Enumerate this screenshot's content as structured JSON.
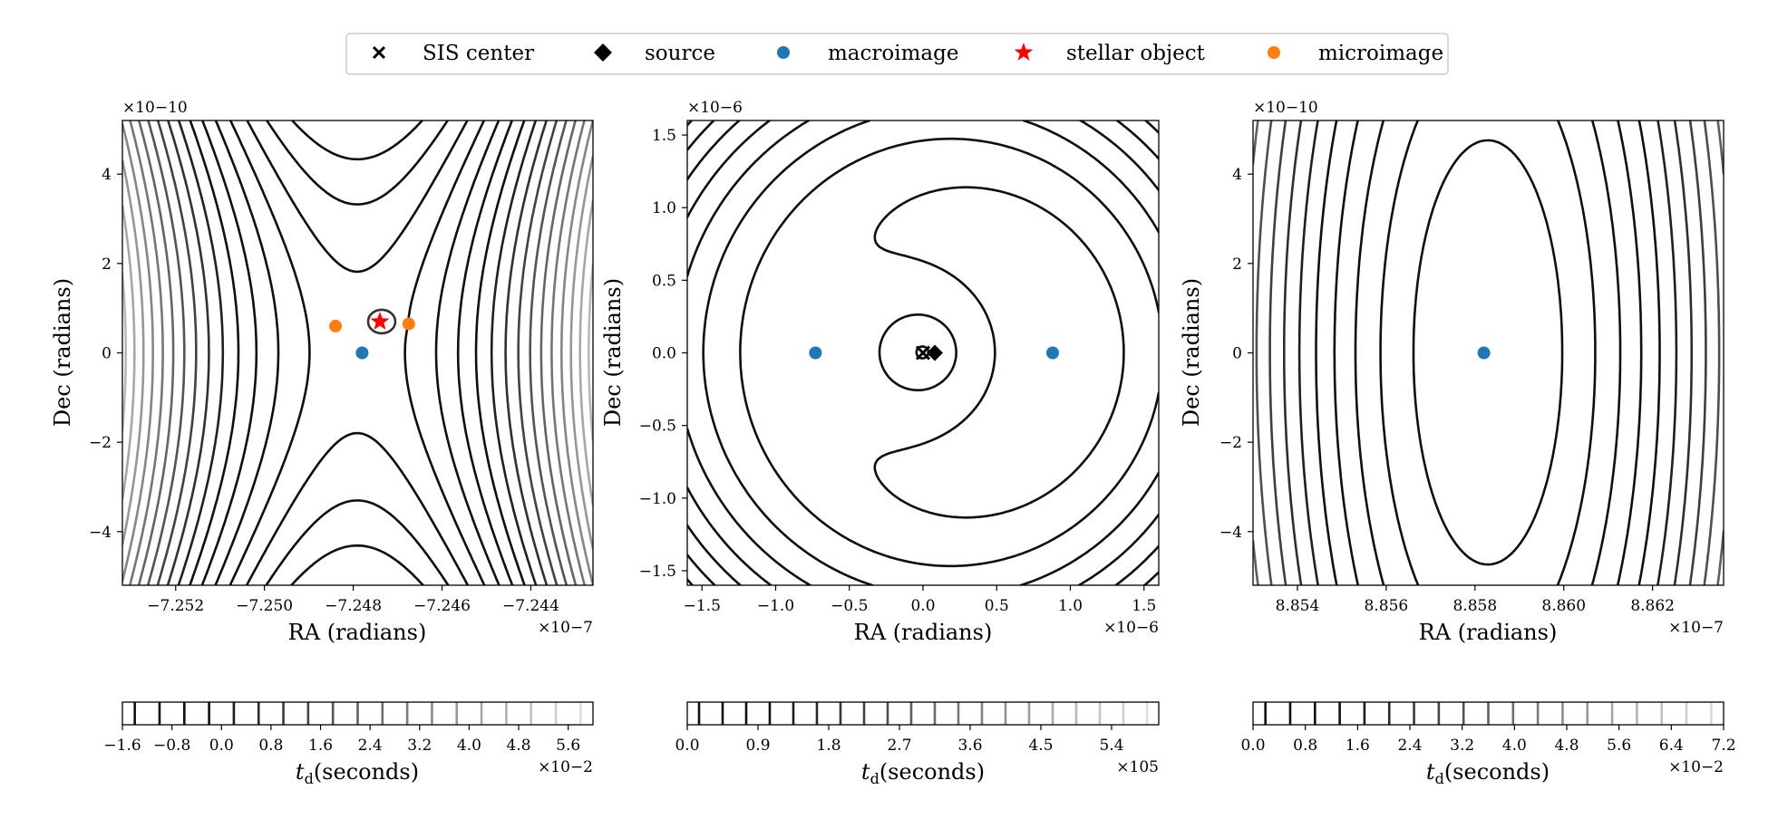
{
  "legend": {
    "items": [
      {
        "label": "SIS center",
        "marker": "x",
        "color": "#000000"
      },
      {
        "label": "source",
        "marker": "diamond",
        "color": "#000000"
      },
      {
        "label": "macroimage",
        "marker": "circle",
        "color": "#1f77b4"
      },
      {
        "label": "stellar object",
        "marker": "star",
        "color": "#ff0000"
      },
      {
        "label": "microimage",
        "marker": "circle",
        "color": "#ff7f0e"
      }
    ]
  },
  "chart_data": [
    {
      "type": "contour",
      "xlabel": "RA (radians)",
      "ylabel": "Dec (radians)",
      "x_exponent": "×10−7",
      "y_exponent": "×10−10",
      "xlim": [
        -7.2532,
        -7.2426
      ],
      "ylim": [
        -5.2,
        5.2
      ],
      "xticks": [
        "−7.252",
        "−7.250",
        "−7.248",
        "−7.246",
        "−7.244"
      ],
      "xtick_values": [
        -7.252,
        -7.25,
        -7.248,
        -7.246,
        -7.244
      ],
      "yticks": [
        "−4",
        "−2",
        "0",
        "2",
        "4"
      ],
      "ytick_values": [
        -4,
        -2,
        0,
        2,
        4
      ],
      "points": [
        {
          "name": "macroimage",
          "x": -7.2478,
          "y": 0.0,
          "color": "#1f77b4"
        },
        {
          "name": "microimage",
          "x": -7.2484,
          "y": 0.6,
          "color": "#ff7f0e"
        },
        {
          "name": "microimage",
          "x": -7.24675,
          "y": 0.65,
          "color": "#ff7f0e"
        },
        {
          "name": "stellar object",
          "x": -7.2474,
          "y": 0.7,
          "color": "#ff0000"
        }
      ],
      "colorbar": {
        "label": "t_d(seconds)",
        "exponent": "×10−2",
        "min": -1.6,
        "max": 6.0,
        "ticks": [
          "−1.6",
          "−0.8",
          "0.0",
          "0.8",
          "1.6",
          "2.4",
          "3.2",
          "4.0",
          "4.8",
          "5.6"
        ],
        "tick_values": [
          -1.6,
          -0.8,
          0.0,
          0.8,
          1.6,
          2.4,
          3.2,
          4.0,
          4.8,
          5.6
        ],
        "levels": 19
      }
    },
    {
      "type": "contour",
      "xlabel": "RA (radians)",
      "ylabel": "Dec (radians)",
      "x_exponent": "×10−6",
      "y_exponent": "×10−6",
      "xlim": [
        -1.6,
        1.6
      ],
      "ylim": [
        -1.6,
        1.6
      ],
      "xticks": [
        "−1.5",
        "−1.0",
        "−0.5",
        "0.0",
        "0.5",
        "1.0",
        "1.5"
      ],
      "xtick_values": [
        -1.5,
        -1.0,
        -0.5,
        0.0,
        0.5,
        1.0,
        1.5
      ],
      "yticks": [
        "−1.5",
        "−1.0",
        "−0.5",
        "0.0",
        "0.5",
        "1.0",
        "1.5"
      ],
      "ytick_values": [
        -1.5,
        -1.0,
        -0.5,
        0.0,
        0.5,
        1.0,
        1.5
      ],
      "points": [
        {
          "name": "macroimage",
          "x": -0.73,
          "y": 0.0,
          "color": "#1f77b4"
        },
        {
          "name": "macroimage",
          "x": 0.88,
          "y": 0.0,
          "color": "#1f77b4"
        },
        {
          "name": "SIS center",
          "x": 0.0,
          "y": 0.0,
          "color": "#000000"
        },
        {
          "name": "source",
          "x": 0.08,
          "y": 0.0,
          "color": "#000000"
        }
      ],
      "colorbar": {
        "label": "t_d(seconds)",
        "exponent": "×105",
        "min": 0.0,
        "max": 6.0,
        "ticks": [
          "0.0",
          "0.9",
          "1.8",
          "2.7",
          "3.6",
          "4.5",
          "5.4"
        ],
        "tick_values": [
          0.0,
          0.9,
          1.8,
          2.7,
          3.6,
          4.5,
          5.4
        ],
        "levels": 20
      }
    },
    {
      "type": "contour",
      "xlabel": "RA (radians)",
      "ylabel": "Dec (radians)",
      "x_exponent": "×10−7",
      "y_exponent": "×10−10",
      "xlim": [
        8.853,
        8.8636
      ],
      "ylim": [
        -5.2,
        5.2
      ],
      "xticks": [
        "8.854",
        "8.856",
        "8.858",
        "8.860",
        "8.862"
      ],
      "xtick_values": [
        8.854,
        8.856,
        8.858,
        8.86,
        8.862
      ],
      "yticks": [
        "−4",
        "−2",
        "0",
        "2",
        "4"
      ],
      "ytick_values": [
        -4,
        -2,
        0,
        2,
        4
      ],
      "points": [
        {
          "name": "macroimage",
          "x": 8.8582,
          "y": 0.0,
          "color": "#1f77b4"
        }
      ],
      "colorbar": {
        "label": "t_d(seconds)",
        "exponent": "×10−2",
        "min": 0.0,
        "max": 7.2,
        "ticks": [
          "0.0",
          "0.8",
          "1.6",
          "2.4",
          "3.2",
          "4.0",
          "4.8",
          "5.6",
          "6.4",
          "7.2"
        ],
        "tick_values": [
          0.0,
          0.8,
          1.6,
          2.4,
          3.2,
          4.0,
          4.8,
          5.6,
          6.4,
          7.2
        ],
        "levels": 19
      }
    }
  ]
}
